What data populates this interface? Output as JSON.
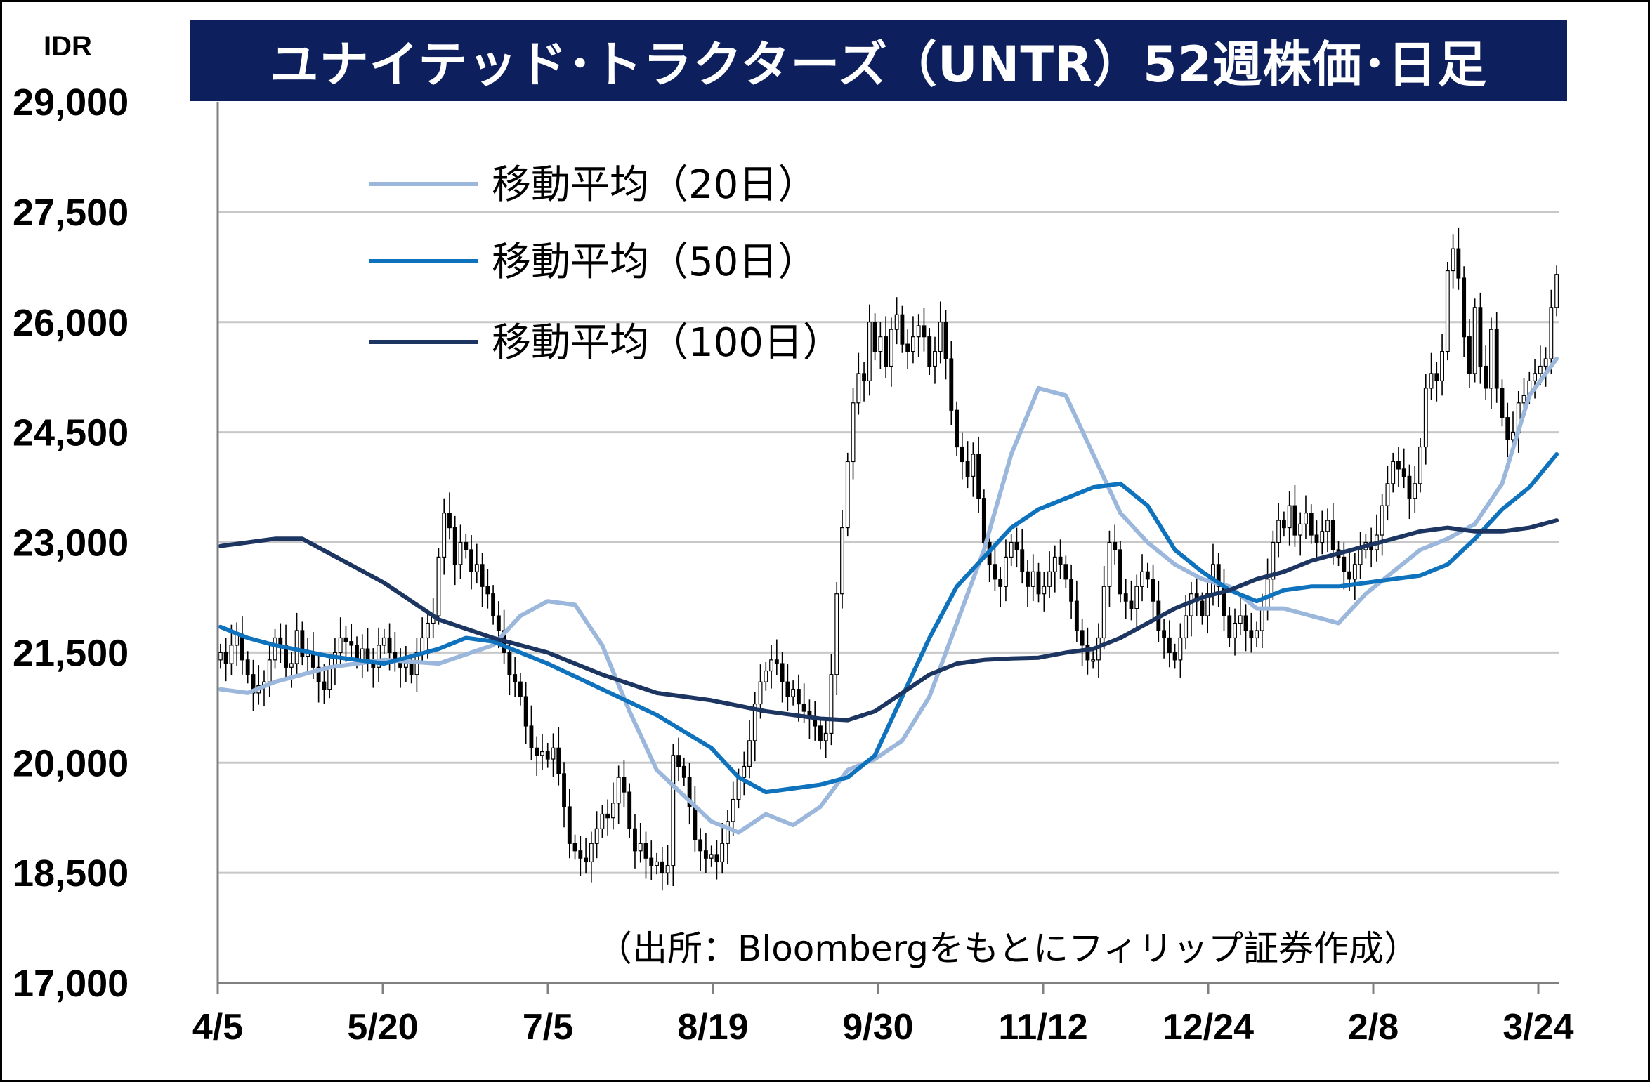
{
  "chart_data": {
    "type": "candlestick",
    "title": "ユナイテッド･トラクターズ（UNTR）52週株価･日足",
    "unit_label": "IDR",
    "y_ticks": [
      "29,000",
      "27,500",
      "26,000",
      "24,500",
      "23,000",
      "21,500",
      "20,000",
      "18,500",
      "17,000"
    ],
    "ylim": [
      17000,
      29000
    ],
    "x_ticks": [
      "4/5",
      "5/20",
      "7/5",
      "8/19",
      "9/30",
      "11/12",
      "12/24",
      "2/8",
      "3/24"
    ],
    "grid": "horizontal",
    "legend_position": "top-left",
    "source_note": "（出所：Bloombergをもとにフィリップ証券作成）",
    "series": [
      {
        "name": "移動平均（20日）",
        "color": "#9bb7dc",
        "x": [
          0,
          5,
          10,
          20,
          30,
          40,
          50,
          55,
          60,
          65,
          70,
          75,
          80,
          85,
          90,
          95,
          100,
          105,
          110,
          115,
          120,
          125,
          130,
          135,
          140,
          145,
          150,
          155,
          160,
          165,
          170,
          175,
          180,
          185,
          190,
          195,
          200,
          205,
          210,
          215,
          220,
          225,
          230,
          235,
          240,
          245
        ],
        "values": [
          21000,
          20950,
          21100,
          21300,
          21400,
          21350,
          21600,
          22000,
          22200,
          22150,
          21600,
          20700,
          19900,
          19550,
          19200,
          19050,
          19300,
          19150,
          19400,
          19900,
          20050,
          20300,
          20900,
          21900,
          22900,
          24200,
          25100,
          25000,
          24200,
          23400,
          23000,
          22700,
          22500,
          22400,
          22100,
          22100,
          22000,
          21900,
          22300,
          22600,
          22900,
          23050,
          23250,
          23800,
          25000,
          25500
        ]
      },
      {
        "name": "移動平均（50日）",
        "color": "#0f72bd",
        "x": [
          0,
          5,
          10,
          20,
          30,
          40,
          45,
          50,
          60,
          70,
          80,
          90,
          95,
          100,
          105,
          110,
          115,
          120,
          125,
          130,
          135,
          140,
          145,
          150,
          155,
          160,
          165,
          170,
          175,
          180,
          185,
          190,
          195,
          200,
          205,
          210,
          215,
          220,
          225,
          230,
          235,
          240,
          245
        ],
        "values": [
          21850,
          21700,
          21600,
          21450,
          21350,
          21550,
          21700,
          21650,
          21350,
          21000,
          20650,
          20200,
          19800,
          19600,
          19650,
          19700,
          19800,
          20100,
          20900,
          21700,
          22400,
          22800,
          23200,
          23450,
          23600,
          23750,
          23800,
          23500,
          22900,
          22600,
          22350,
          22200,
          22350,
          22400,
          22400,
          22450,
          22500,
          22550,
          22700,
          23050,
          23450,
          23750,
          24200
        ]
      },
      {
        "name": "移動平均（100日）",
        "color": "#1c3561",
        "x": [
          0,
          10,
          15,
          20,
          30,
          40,
          50,
          60,
          70,
          80,
          90,
          100,
          110,
          115,
          120,
          125,
          130,
          135,
          140,
          145,
          150,
          155,
          160,
          165,
          170,
          175,
          180,
          185,
          190,
          195,
          200,
          205,
          210,
          215,
          220,
          225,
          230,
          235,
          240,
          245
        ],
        "values": [
          22950,
          23050,
          23050,
          22850,
          22450,
          21950,
          21700,
          21500,
          21200,
          20950,
          20850,
          20700,
          20600,
          20580,
          20700,
          20950,
          21200,
          21350,
          21400,
          21420,
          21430,
          21500,
          21550,
          21700,
          21900,
          22100,
          22250,
          22350,
          22500,
          22600,
          22750,
          22850,
          22950,
          23050,
          23150,
          23200,
          23150,
          23150,
          23200,
          23300
        ]
      },
      {
        "name": "",
        "close": [
          21500,
          21350,
          21600,
          21750,
          21400,
          21200,
          20950,
          21050,
          21100,
          21400,
          21700,
          21600,
          21300,
          21350,
          21800,
          21450,
          21500,
          21300,
          21100,
          21000,
          21300,
          21500,
          21700,
          21650,
          21600,
          21400,
          21550,
          21400,
          21300,
          21600,
          21700,
          21500,
          21400,
          21300,
          21350,
          21200,
          21500,
          21700,
          21900,
          22000,
          22800,
          23400,
          23200,
          22700,
          23000,
          22900,
          22600,
          22700,
          22400,
          22300,
          22000,
          21800,
          21500,
          21200,
          21100,
          20900,
          20500,
          20200,
          20100,
          20150,
          20050,
          20200,
          19850,
          19400,
          18900,
          18800,
          18700,
          18650,
          18900,
          19100,
          19300,
          19250,
          19450,
          19800,
          19600,
          19100,
          18800,
          18900,
          18700,
          18600,
          18650,
          18500,
          18600,
          20100,
          19950,
          19800,
          19400,
          18950,
          18800,
          18700,
          18750,
          18650,
          18900,
          19200,
          19500,
          19800,
          19950,
          20300,
          20800,
          21100,
          21250,
          21400,
          21350,
          21100,
          20900,
          21000,
          20800,
          20700,
          20600,
          20500,
          20300,
          20400,
          21200,
          22300,
          23200,
          24100,
          24900,
          25300,
          25200,
          26000,
          25600,
          25800,
          25400,
          25900,
          26100,
          25700,
          25600,
          25800,
          25950,
          25800,
          25400,
          25600,
          26000,
          25500,
          24800,
          24300,
          24100,
          23900,
          24200,
          23600,
          23000,
          22700,
          22500,
          22400,
          22800,
          23000,
          22900,
          22600,
          22400,
          22600,
          22300,
          22400,
          22600,
          22800,
          22700,
          22500,
          22200,
          21800,
          21600,
          21400,
          21400,
          21700,
          22400,
          23000,
          22900,
          22300,
          22200,
          22100,
          22400,
          22600,
          22500,
          22200,
          21800,
          21700,
          21500,
          21400,
          21700,
          22000,
          22300,
          22200,
          22000,
          22300,
          22700,
          22400,
          22000,
          21700,
          21900,
          22000,
          21800,
          21700,
          21800,
          22100,
          22500,
          23000,
          23300,
          23200,
          23500,
          23100,
          23250,
          23400,
          23100,
          23000,
          23150,
          23300,
          22900,
          22800,
          22600,
          22500,
          22700,
          22900,
          23000,
          22900,
          23100,
          23500,
          23800,
          24100,
          24000,
          23900,
          23600,
          23800,
          24300,
          25100,
          25300,
          25200,
          25600,
          26700,
          27000,
          26600,
          25800,
          25300,
          26200,
          25400,
          25100,
          25900,
          25100,
          24700,
          24400,
          24500,
          24900,
          25000,
          25200,
          25300,
          25400,
          25500,
          26200,
          26650
        ]
      }
    ]
  },
  "legend": {
    "ma20": "移動平均（20日）",
    "ma50": "移動平均（50日）",
    "ma100": "移動平均（100日）"
  }
}
